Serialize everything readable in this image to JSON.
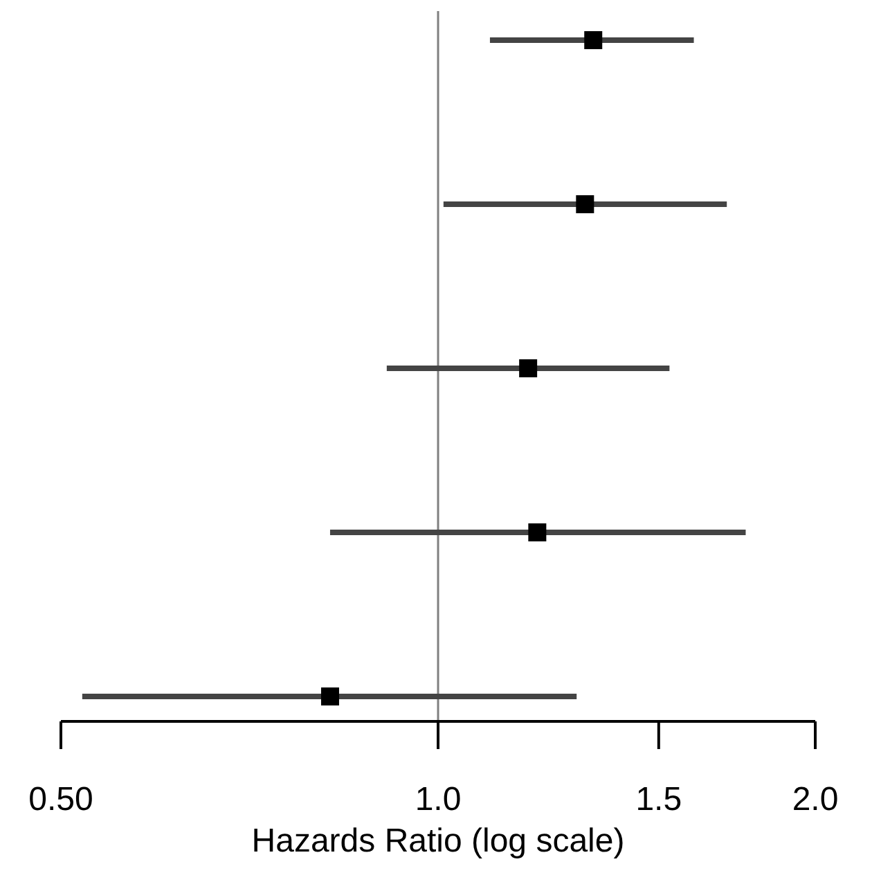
{
  "chart_data": {
    "type": "scatter",
    "orientation": "horizontal",
    "xlabel": "Hazards Ratio (log scale)",
    "categories": [
      null,
      null,
      null,
      null,
      null
    ],
    "values": [
      1.33,
      1.31,
      1.18,
      1.2,
      0.82
    ],
    "errors": [
      [
        1.1,
        1.6
      ],
      [
        1.01,
        1.7
      ],
      [
        0.91,
        1.53
      ],
      [
        0.82,
        1.76
      ],
      [
        0.52,
        1.29
      ]
    ],
    "color": "#000000",
    "marker": "square",
    "log": "x",
    "xlim": [
      0.5,
      2.0
    ],
    "xticks": [
      {
        "value": 0.5,
        "label": "0.50"
      },
      {
        "value": 1,
        "label": "1.0"
      },
      1.5,
      {
        "value": 2,
        "label": "2.0"
      }
    ],
    "ref_lines": [
      {
        "axis": "x",
        "value": 1,
        "color": "#808080"
      }
    ],
    "tick_labels": "x",
    "grid": false
  }
}
